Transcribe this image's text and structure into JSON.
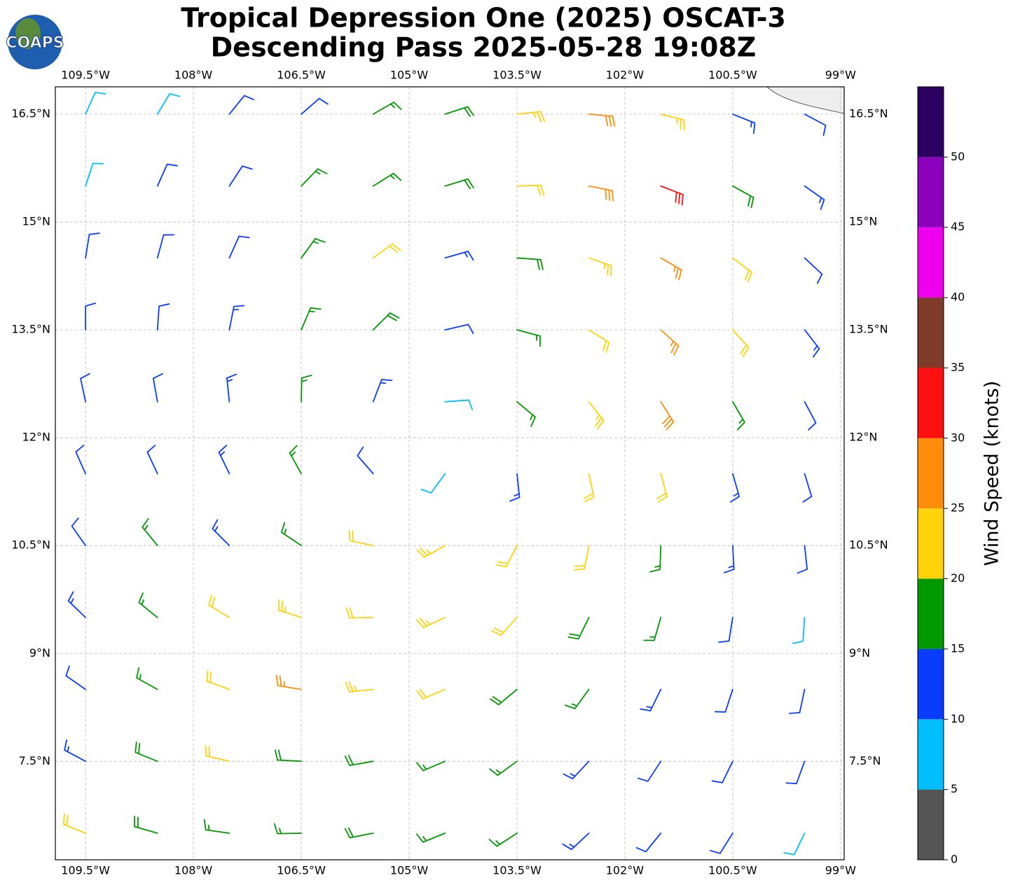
{
  "chart_data": {
    "type": "wind_barbs",
    "logo": "COAPS",
    "title": "Tropical Depression One (2025) OSCAT-3",
    "subtitle": "Descending Pass 2025-05-28 19:08Z",
    "xlim": [
      -109.92,
      -98.95
    ],
    "ylim": [
      6.13,
      16.88
    ],
    "xticks": [
      {
        "value": -109.5,
        "label": "109.5°W"
      },
      {
        "value": -108,
        "label": "108°W"
      },
      {
        "value": -106.5,
        "label": "106.5°W"
      },
      {
        "value": -105,
        "label": "105°W"
      },
      {
        "value": -103.5,
        "label": "103.5°W"
      },
      {
        "value": -102,
        "label": "102°W"
      },
      {
        "value": -100.5,
        "label": "100.5°W"
      },
      {
        "value": -99,
        "label": "99°W"
      }
    ],
    "yticks": [
      {
        "value": 7.5,
        "label": "7.5°N"
      },
      {
        "value": 9,
        "label": "9°N"
      },
      {
        "value": 10.5,
        "label": "10.5°N"
      },
      {
        "value": 12,
        "label": "12°N"
      },
      {
        "value": 13.5,
        "label": "13.5°N"
      },
      {
        "value": 15,
        "label": "15°N"
      },
      {
        "value": 16.5,
        "label": "16.5°N"
      }
    ],
    "grid": true,
    "x": [
      -109.5,
      -108.5,
      -107.5,
      -106.5,
      -105.5,
      -104.5,
      -103.5,
      -102.5,
      -101.5,
      -100.5,
      -99.5
    ],
    "y": [
      16.5,
      15.5,
      14.5,
      13.5,
      12.5,
      11.5,
      10.5,
      9.5,
      8.5,
      7.5,
      6.5
    ],
    "speed": [
      [
        8,
        9,
        11,
        12,
        17,
        19,
        24,
        28,
        24,
        14,
        12
      ],
      [
        9,
        11,
        12,
        15,
        17,
        19,
        22,
        28,
        30,
        18,
        13
      ],
      [
        11,
        12,
        12,
        16,
        20,
        13,
        18,
        24,
        26,
        20,
        12
      ],
      [
        12,
        12,
        13,
        17,
        18,
        12,
        15,
        20,
        26,
        20,
        13
      ],
      [
        12,
        12,
        13,
        17,
        14,
        9,
        17,
        24,
        28,
        16,
        12
      ],
      [
        11,
        12,
        13,
        16,
        12,
        8,
        14,
        22,
        20,
        14,
        11
      ],
      [
        12,
        16,
        14,
        17,
        20,
        24,
        22,
        20,
        17,
        13,
        10
      ],
      [
        14,
        15,
        22,
        24,
        22,
        24,
        22,
        18,
        15,
        12,
        9
      ],
      [
        12,
        16,
        22,
        26,
        24,
        22,
        18,
        16,
        13,
        12,
        12
      ],
      [
        14,
        18,
        20,
        19,
        18,
        17,
        16,
        14,
        12,
        12,
        11
      ],
      [
        20,
        18,
        17,
        17,
        19,
        17,
        15,
        13,
        12,
        10,
        9
      ]
    ],
    "direction": [
      [
        24,
        31,
        39,
        49,
        60,
        72,
        84,
        95,
        104,
        112,
        118
      ],
      [
        18,
        24,
        33,
        44,
        58,
        73,
        88,
        101,
        111,
        119,
        125
      ],
      [
        9,
        15,
        24,
        36,
        54,
        74,
        94,
        109,
        120,
        127,
        133
      ],
      [
        0,
        4,
        11,
        23,
        45,
        77,
        105,
        122,
        132,
        138,
        142
      ],
      [
        348,
        350,
        354,
        1,
        21,
        86,
        130,
        142,
        148,
        150,
        152
      ],
      [
        336,
        335,
        334,
        331,
        319,
        216,
        174,
        168,
        165,
        164,
        163
      ],
      [
        325,
        321,
        315,
        304,
        282,
        241,
        207,
        191,
        182,
        177,
        174
      ],
      [
        314,
        309,
        301,
        288,
        269,
        245,
        222,
        206,
        196,
        189,
        184
      ],
      [
        305,
        299,
        290,
        279,
        264,
        247,
        230,
        216,
        206,
        198,
        192
      ],
      [
        298,
        292,
        283,
        273,
        260,
        247,
        234,
        223,
        213,
        206,
        200
      ],
      [
        292,
        286,
        278,
        269,
        259,
        248,
        237,
        227,
        219,
        212,
        206
      ]
    ],
    "colorbar": {
      "label": "Wind Speed (knots)",
      "levels": [
        0,
        5,
        10,
        15,
        20,
        25,
        30,
        35,
        40,
        45,
        50,
        55
      ],
      "colors": [
        "#555555",
        "#00bfff",
        "#0a3cff",
        "#009900",
        "#ffd20a",
        "#ff8c0a",
        "#ff1010",
        "#7f3b28",
        "#ee00ee",
        "#8b00bb",
        "#2c0060"
      ],
      "ticks": [
        0,
        5,
        10,
        15,
        20,
        25,
        30,
        35,
        40,
        45,
        50
      ]
    }
  }
}
